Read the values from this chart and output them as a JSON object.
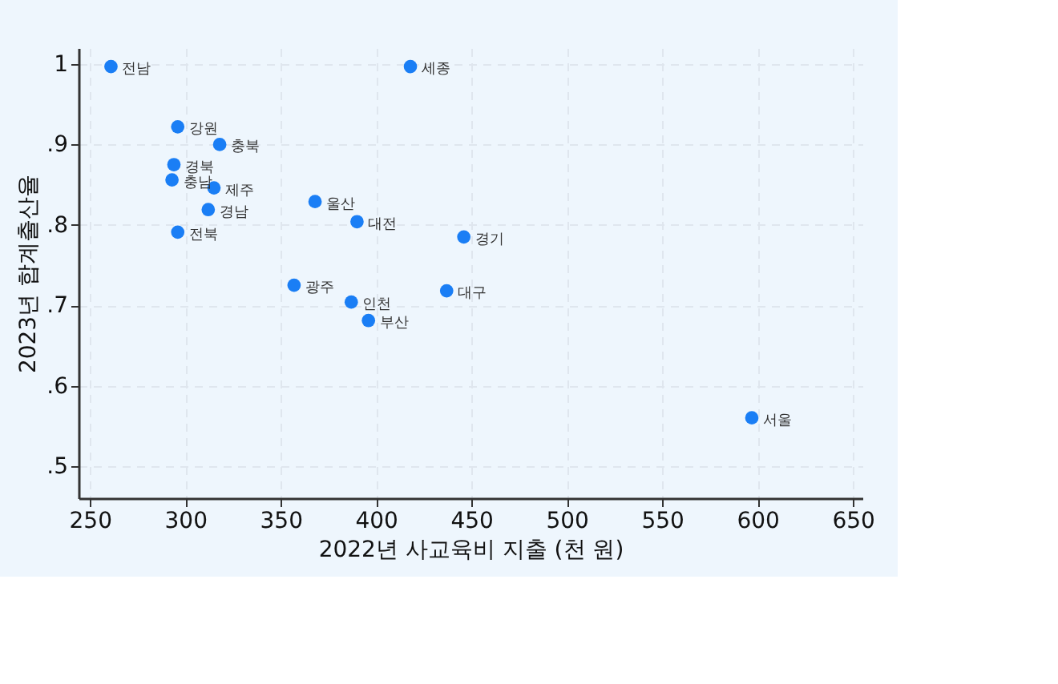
{
  "chart_data": {
    "type": "scatter",
    "xlabel": "2022년 사교육비 지출 (천 원)",
    "ylabel": "2023년 합계출산율",
    "x": [
      261,
      418,
      296,
      318,
      294,
      293,
      315,
      312,
      368,
      390,
      296,
      446,
      357,
      437,
      387,
      396,
      597
    ],
    "series": [
      {
        "color": "#1a7ef5",
        "values": [
          0.997,
          0.997,
          0.922,
          0.9,
          0.875,
          0.856,
          0.846,
          0.819,
          0.829,
          0.804,
          0.791,
          0.785,
          0.725,
          0.718,
          0.704,
          0.681,
          0.56
        ]
      }
    ],
    "annotations": [
      {
        "text": "전남",
        "x": 261,
        "y": 0.997
      },
      {
        "text": "세종",
        "x": 418,
        "y": 0.997
      },
      {
        "text": "강원",
        "x": 296,
        "y": 0.922
      },
      {
        "text": "충북",
        "x": 318,
        "y": 0.9
      },
      {
        "text": "경북",
        "x": 294,
        "y": 0.875
      },
      {
        "text": "충남",
        "x": 293,
        "y": 0.856
      },
      {
        "text": "제주",
        "x": 315,
        "y": 0.846
      },
      {
        "text": "경남",
        "x": 312,
        "y": 0.819
      },
      {
        "text": "울산",
        "x": 368,
        "y": 0.829
      },
      {
        "text": "대전",
        "x": 390,
        "y": 0.804
      },
      {
        "text": "전북",
        "x": 296,
        "y": 0.791
      },
      {
        "text": "경기",
        "x": 446,
        "y": 0.785
      },
      {
        "text": "광주",
        "x": 357,
        "y": 0.725
      },
      {
        "text": "대구",
        "x": 437,
        "y": 0.718
      },
      {
        "text": "인천",
        "x": 387,
        "y": 0.704
      },
      {
        "text": "부산",
        "x": 396,
        "y": 0.681
      },
      {
        "text": "서울",
        "x": 597,
        "y": 0.56
      }
    ],
    "xlim": [
      244,
      655
    ],
    "ylim": [
      0.46,
      1.02
    ],
    "xticks": [
      250,
      300,
      350,
      400,
      450,
      500,
      550,
      600,
      650
    ],
    "yticks": [
      {
        "value": 0.5,
        "label": ".5"
      },
      {
        "value": 0.6,
        "label": ".6"
      },
      {
        "value": 0.7,
        "label": ".7"
      },
      {
        "value": 0.8,
        "label": ".8"
      },
      {
        "value": 0.9,
        "label": ".9"
      },
      1
    ],
    "grid": true,
    "marker": "circle"
  }
}
